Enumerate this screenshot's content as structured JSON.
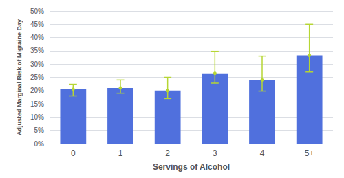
{
  "chart_data": {
    "type": "bar",
    "categories": [
      "0",
      "1",
      "2",
      "3",
      "4",
      "5+"
    ],
    "values": [
      0.205,
      0.21,
      0.2,
      0.265,
      0.24,
      0.333
    ],
    "ci_lower": [
      0.18,
      0.19,
      0.17,
      0.228,
      0.198,
      0.27
    ],
    "ci_upper": [
      0.224,
      0.24,
      0.25,
      0.348,
      0.33,
      0.45
    ],
    "xlabel": "Servings of Alcohol",
    "ylabel": "Adjusted Marginal Risk of Migraine Day",
    "ylim": [
      0.0,
      0.5
    ],
    "yticks": [
      {
        "value": 0.0,
        "label": "0%"
      },
      {
        "value": 0.05,
        "label": "5%"
      },
      {
        "value": 0.1,
        "label": "10%"
      },
      {
        "value": 0.15,
        "label": "15%"
      },
      {
        "value": 0.2,
        "label": "20%"
      },
      {
        "value": 0.25,
        "label": "25%"
      },
      {
        "value": 0.3,
        "label": "30%"
      },
      {
        "value": 0.35,
        "label": "35%"
      },
      {
        "value": 0.4,
        "label": "40%"
      },
      {
        "value": 0.45,
        "label": "45%"
      },
      {
        "value": 0.5,
        "label": "50%"
      }
    ],
    "grid": true
  }
}
